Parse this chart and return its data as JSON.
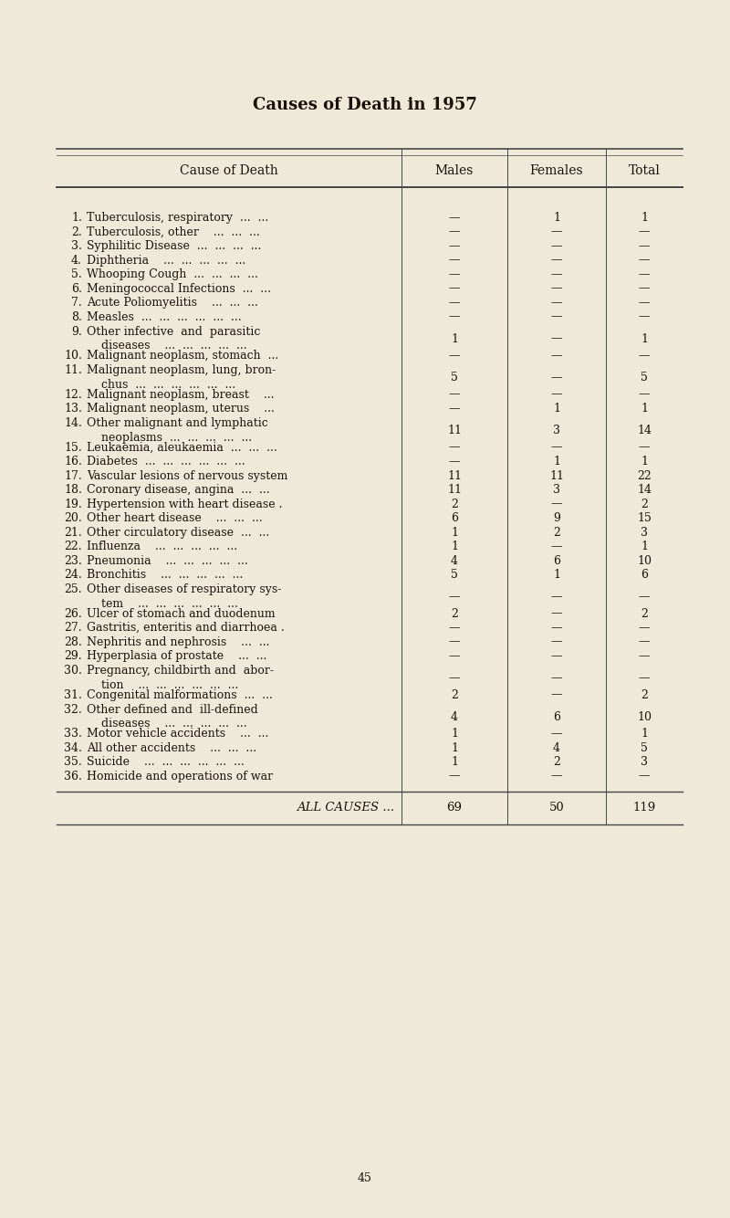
{
  "title": "Causes of Death in 1957",
  "bg_color": "#eee9d8",
  "text_color": "#1a1208",
  "col_headers": [
    "Cause of Death",
    "Males",
    "Females",
    "Total"
  ],
  "rows": [
    {
      "num": "1.",
      "line1": "Tuberculosis, respiratory  ...  ...",
      "line2": null,
      "males": "—",
      "females": "1",
      "total": "1"
    },
    {
      "num": "2.",
      "line1": "Tuberculosis, other    ...  ...  ...",
      "line2": null,
      "males": "—",
      "females": "—",
      "total": "—"
    },
    {
      "num": "3.",
      "line1": "Syphilitic Disease  ...  ...  ...  ...",
      "line2": null,
      "males": "—",
      "females": "—",
      "total": "—"
    },
    {
      "num": "4.",
      "line1": "Diphtheria    ...  ...  ...  ...  ...",
      "line2": null,
      "males": "—",
      "females": "—",
      "total": "—"
    },
    {
      "num": "5.",
      "line1": "Whooping Cough  ...  ...  ...  ...",
      "line2": null,
      "males": "—",
      "females": "—",
      "total": "—"
    },
    {
      "num": "6.",
      "line1": "Meningococcal Infections  ...  ...",
      "line2": null,
      "males": "—",
      "females": "—",
      "total": "—"
    },
    {
      "num": "7.",
      "line1": "Acute Poliomyelitis    ...  ...  ...",
      "line2": null,
      "males": "—",
      "females": "—",
      "total": "—"
    },
    {
      "num": "8.",
      "line1": "Measles  ...  ...  ...  ...  ...  ...",
      "line2": null,
      "males": "—",
      "females": "—",
      "total": "—"
    },
    {
      "num": "9.",
      "line1": "Other infective  and  parasitic",
      "line2": "    diseases    ...  ...  ...  ...  ...",
      "males": "1",
      "females": "—",
      "total": "1"
    },
    {
      "num": "10.",
      "line1": "Malignant neoplasm, stomach  ...",
      "line2": null,
      "males": "—",
      "females": "—",
      "total": "—"
    },
    {
      "num": "11.",
      "line1": "Malignant neoplasm, lung, bron-",
      "line2": "    chus  ...  ...  ...  ...  ...  ...",
      "males": "5",
      "females": "—",
      "total": "5"
    },
    {
      "num": "12.",
      "line1": "Malignant neoplasm, breast    ...",
      "line2": null,
      "males": "—",
      "females": "—",
      "total": "—"
    },
    {
      "num": "13.",
      "line1": "Malignant neoplasm, uterus    ...",
      "line2": null,
      "males": "—",
      "females": "1",
      "total": "1"
    },
    {
      "num": "14.",
      "line1": "Other malignant and lymphatic",
      "line2": "    neoplasms  ...  ...  ...  ...  ...",
      "males": "11",
      "females": "3",
      "total": "14"
    },
    {
      "num": "15.",
      "line1": "Leukaemia, aleukaemia  ...  ...  ...",
      "line2": null,
      "males": "—",
      "females": "—",
      "total": "—"
    },
    {
      "num": "16.",
      "line1": "Diabetes  ...  ...  ...  ...  ...  ...",
      "line2": null,
      "males": "—",
      "females": "1",
      "total": "1"
    },
    {
      "num": "17.",
      "line1": "Vascular lesions of nervous system",
      "line2": null,
      "males": "11",
      "females": "11",
      "total": "22"
    },
    {
      "num": "18.",
      "line1": "Coronary disease, angina  ...  ...",
      "line2": null,
      "males": "11",
      "females": "3",
      "total": "14"
    },
    {
      "num": "19.",
      "line1": "Hypertension with heart disease .",
      "line2": null,
      "males": "2",
      "females": "—",
      "total": "2"
    },
    {
      "num": "20.",
      "line1": "Other heart disease    ...  ...  ...",
      "line2": null,
      "males": "6",
      "females": "9",
      "total": "15"
    },
    {
      "num": "21.",
      "line1": "Other circulatory disease  ...  ...",
      "line2": null,
      "males": "1",
      "females": "2",
      "total": "3"
    },
    {
      "num": "22.",
      "line1": "Influenza    ...  ...  ...  ...  ...",
      "line2": null,
      "males": "1",
      "females": "—",
      "total": "1"
    },
    {
      "num": "23.",
      "line1": "Pneumonia    ...  ...  ...  ...  ...",
      "line2": null,
      "males": "4",
      "females": "6",
      "total": "10"
    },
    {
      "num": "24.",
      "line1": "Bronchitis    ...  ...  ...  ...  ...",
      "line2": null,
      "males": "5",
      "females": "1",
      "total": "6"
    },
    {
      "num": "25.",
      "line1": "Other diseases of respiratory sys-",
      "line2": "    tem    ...  ...  ...  ...  ...  ...",
      "males": "—",
      "females": "—",
      "total": "—"
    },
    {
      "num": "26.",
      "line1": "Ulcer of stomach and duodenum",
      "line2": null,
      "males": "2",
      "females": "—",
      "total": "2"
    },
    {
      "num": "27.",
      "line1": "Gastritis, enteritis and diarrhoea .",
      "line2": null,
      "males": "—",
      "females": "—",
      "total": "—"
    },
    {
      "num": "28.",
      "line1": "Nephritis and nephrosis    ...  ...",
      "line2": null,
      "males": "—",
      "females": "—",
      "total": "—"
    },
    {
      "num": "29.",
      "line1": "Hyperplasia of prostate    ...  ...",
      "line2": null,
      "males": "—",
      "females": "—",
      "total": "—"
    },
    {
      "num": "30.",
      "line1": "Pregnancy, childbirth and  abor-",
      "line2": "    tion    ...  ...  ...  ...  ...  ...",
      "males": "—",
      "females": "—",
      "total": "—"
    },
    {
      "num": "31.",
      "line1": "Congenital malformations  ...  ...",
      "line2": null,
      "males": "2",
      "females": "—",
      "total": "2"
    },
    {
      "num": "32.",
      "line1": "Other defined and  ill-defined",
      "line2": "    diseases    ...  ...  ...  ...  ...",
      "males": "4",
      "females": "6",
      "total": "10"
    },
    {
      "num": "33.",
      "line1": "Motor vehicle accidents    ...  ...",
      "line2": null,
      "males": "1",
      "females": "—",
      "total": "1"
    },
    {
      "num": "34.",
      "line1": "All other accidents    ...  ...  ...",
      "line2": null,
      "males": "1",
      "females": "4",
      "total": "5"
    },
    {
      "num": "35.",
      "line1": "Suicide    ...  ...  ...  ...  ...  ...",
      "line2": null,
      "males": "1",
      "females": "2",
      "total": "3"
    },
    {
      "num": "36.",
      "line1": "Homicide and operations of war",
      "line2": null,
      "males": "—",
      "females": "—",
      "total": "—"
    }
  ],
  "footer_label": "ALL CAUSES ...",
  "footer_males": "69",
  "footer_females": "50",
  "footer_total": "119",
  "page_number": "45"
}
